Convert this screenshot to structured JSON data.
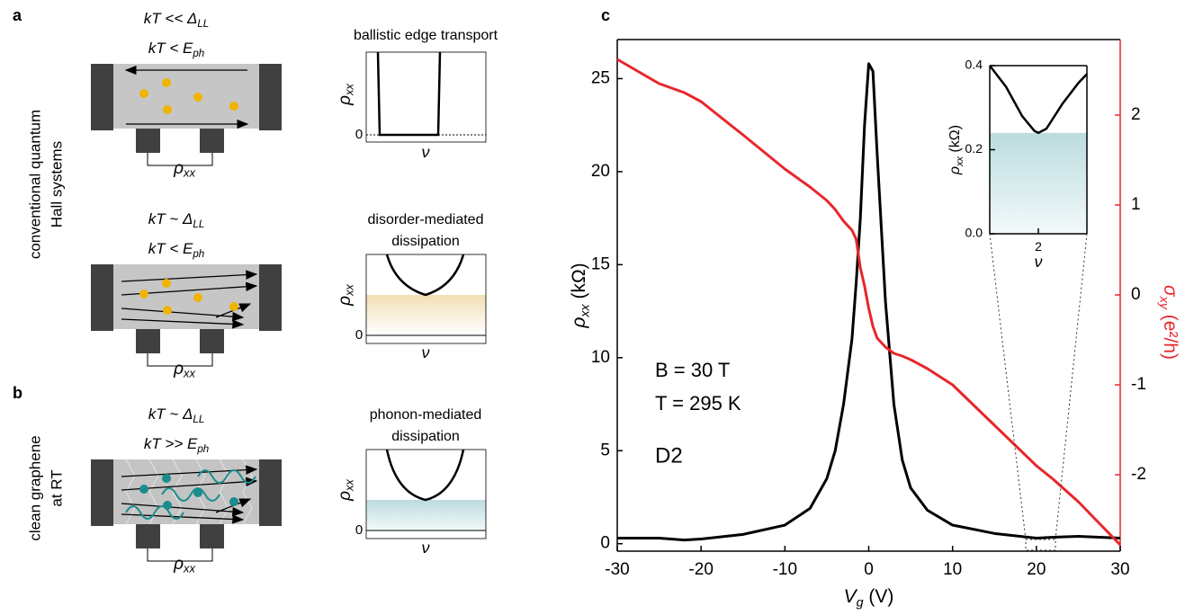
{
  "schematic": {
    "panel_labels": [
      "a",
      "b"
    ],
    "side_labels": [
      [
        "conventional quantum",
        "Hall systems"
      ],
      [
        "clean graphene",
        "at RT"
      ]
    ],
    "rows": [
      {
        "conditions": [
          {
            "text": "kT << Δ",
            "sub": "LL"
          },
          {
            "text": "kT < E",
            "sub": "ph"
          }
        ],
        "title": [
          "ballistic edge transport"
        ],
        "title_color": "#000000",
        "probe_label": {
          "text": "ρ",
          "sub": "xx"
        },
        "plot_ylabel": {
          "text": "ρ",
          "sub": "xx"
        },
        "plot_zero": "0",
        "plot_xlabel": "ν"
      },
      {
        "conditions": [
          {
            "text": "kT ~ Δ",
            "sub": "LL"
          },
          {
            "text": "kT < E",
            "sub": "ph"
          }
        ],
        "title": [
          "disorder-mediated",
          "dissipation"
        ],
        "title_color": "#d9a521",
        "probe_label": {
          "text": "ρ",
          "sub": "xx"
        },
        "plot_ylabel": {
          "text": "ρ",
          "sub": "xx"
        },
        "plot_zero": "0",
        "plot_xlabel": "ν"
      },
      {
        "conditions": [
          {
            "text": "kT ~ Δ",
            "sub": "LL"
          },
          {
            "text": "kT >> E",
            "sub": "ph"
          }
        ],
        "title": [
          "phonon-mediated",
          "dissipation"
        ],
        "title_color": "#1a8c8c",
        "probe_label": {
          "text": "ρ",
          "sub": "xx"
        },
        "plot_ylabel": {
          "text": "ρ",
          "sub": "xx"
        },
        "plot_zero": "0",
        "plot_xlabel": "ν"
      }
    ]
  },
  "chart_data": [
    {
      "type": "line",
      "panel_label": "c",
      "xlabel": {
        "symbol": "V",
        "sub": "g",
        "unit": " (V)"
      },
      "ylabel": {
        "symbol": "ρ",
        "sub": "xx",
        "unit": " (kΩ)"
      },
      "y2label": {
        "symbol": "σ",
        "sub": "xy",
        "unit": " (e²/h)"
      },
      "annotations": [
        {
          "text": "B = 30 T",
          "color": "#000000"
        },
        {
          "text": "T = 295 K",
          "color": "#000000"
        },
        {
          "text": "D2",
          "color": "#e8262b"
        }
      ],
      "xlim": [
        -30,
        30
      ],
      "ylim": [
        -0.4,
        27.1
      ],
      "y2lim": [
        -2.85,
        2.84
      ],
      "xticks": [
        -30,
        -20,
        -10,
        0,
        10,
        20,
        30
      ],
      "yticks": [
        0,
        5,
        10,
        15,
        20,
        25
      ],
      "y2ticks": [
        -2,
        -1,
        0,
        1,
        2
      ],
      "x": [
        -30,
        -25,
        -22,
        -20,
        -15,
        -10,
        -7,
        -5,
        -4,
        -3,
        -2,
        -1.5,
        -1,
        -0.5,
        0,
        0.5,
        1,
        2,
        3,
        4,
        5,
        7,
        10,
        15,
        20,
        22,
        25,
        30
      ],
      "series": [
        {
          "color": "#000000",
          "values": [
            0.3,
            0.3,
            0.2,
            0.25,
            0.5,
            1.0,
            1.9,
            3.5,
            5,
            7.5,
            11,
            14,
            17.5,
            22.5,
            25.8,
            25.4,
            21,
            13,
            7.5,
            4.5,
            3,
            1.8,
            1.0,
            0.55,
            0.3,
            0.35,
            0.4,
            0.3
          ]
        },
        {
          "color": "#e8262b",
          "axis": "y2",
          "values": [
            2.62,
            2.35,
            2.25,
            2.15,
            1.78,
            1.4,
            1.2,
            1.05,
            0.95,
            0.82,
            0.72,
            0.62,
            0.3,
            0.1,
            -0.15,
            -0.35,
            -0.48,
            -0.58,
            -0.65,
            -0.68,
            -0.72,
            -0.82,
            -1.0,
            -1.45,
            -1.9,
            -2.05,
            -2.3,
            -2.78
          ]
        }
      ]
    },
    {
      "type": "line",
      "xlabel": {
        "symbol": "ν"
      },
      "ylabel": {
        "symbol": "ρ",
        "sub": "xx",
        "unit": " (kΩ)"
      },
      "xlim": [
        0.8,
        3.2
      ],
      "ylim": [
        0,
        0.4
      ],
      "xticks": [
        2
      ],
      "yticks": [
        {
          "value": 0,
          "label": "0.0"
        },
        0.2,
        0.4
      ],
      "x": [
        0.8,
        1.2,
        1.6,
        1.9,
        2,
        2.2,
        2.6,
        3.0,
        3.2
      ],
      "series": [
        {
          "color": "#000000",
          "values": [
            0.4,
            0.35,
            0.28,
            0.245,
            0.24,
            0.25,
            0.31,
            0.36,
            0.38
          ]
        }
      ]
    }
  ]
}
